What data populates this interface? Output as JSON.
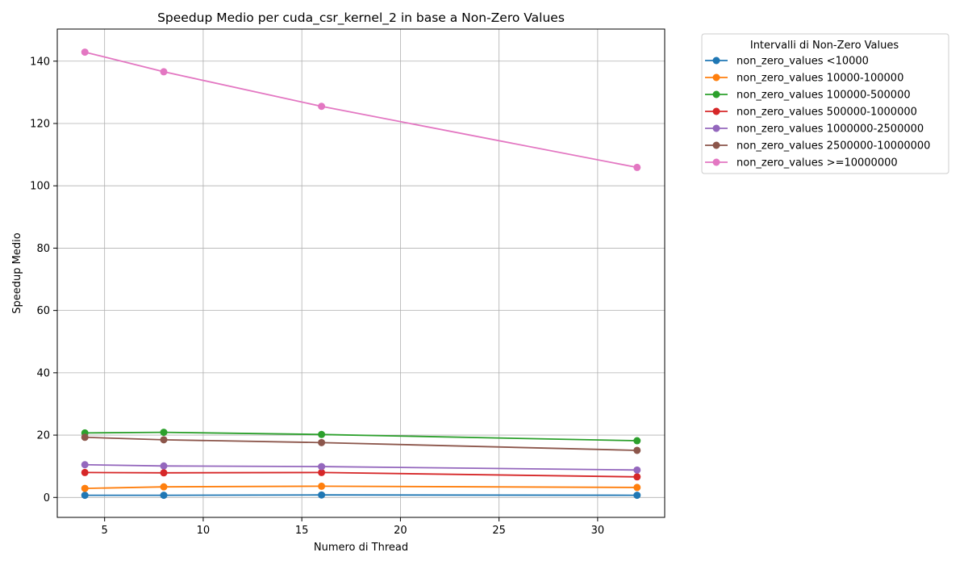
{
  "chart_data": {
    "type": "line",
    "title": "Speedup Medio per cuda_csr_kernel_2 in base a Non-Zero Values",
    "xlabel": "Numero di Thread",
    "ylabel": "Speedup Medio",
    "xlim": [
      2.6,
      33.4
    ],
    "ylim": [
      -6.4,
      150.3
    ],
    "x_ticks": [
      5,
      10,
      15,
      20,
      25,
      30
    ],
    "y_ticks": [
      0,
      20,
      40,
      60,
      80,
      100,
      120,
      140
    ],
    "grid": true,
    "legend": {
      "title": "Intervalli di Non-Zero Values",
      "placement": "outside-top-right"
    },
    "x": [
      4,
      8,
      16,
      32
    ],
    "series": [
      {
        "name": "non_zero_values <10000",
        "color": "#1f77b4",
        "values": [
          0.7,
          0.7,
          0.8,
          0.7
        ]
      },
      {
        "name": "non_zero_values 10000-100000",
        "color": "#ff7f0e",
        "values": [
          2.9,
          3.4,
          3.6,
          3.2
        ]
      },
      {
        "name": "non_zero_values 100000-500000",
        "color": "#2ca02c",
        "values": [
          20.7,
          20.9,
          20.2,
          18.2
        ]
      },
      {
        "name": "non_zero_values 500000-1000000",
        "color": "#d62728",
        "values": [
          8.0,
          7.9,
          8.0,
          6.6
        ]
      },
      {
        "name": "non_zero_values 1000000-2500000",
        "color": "#9467bd",
        "values": [
          10.5,
          10.1,
          9.9,
          8.8
        ]
      },
      {
        "name": "non_zero_values 2500000-10000000",
        "color": "#8c564b",
        "values": [
          19.3,
          18.5,
          17.6,
          15.1
        ]
      },
      {
        "name": "non_zero_values >=10000000",
        "color": "#e377c2",
        "values": [
          142.9,
          136.6,
          125.5,
          105.9
        ]
      }
    ]
  }
}
